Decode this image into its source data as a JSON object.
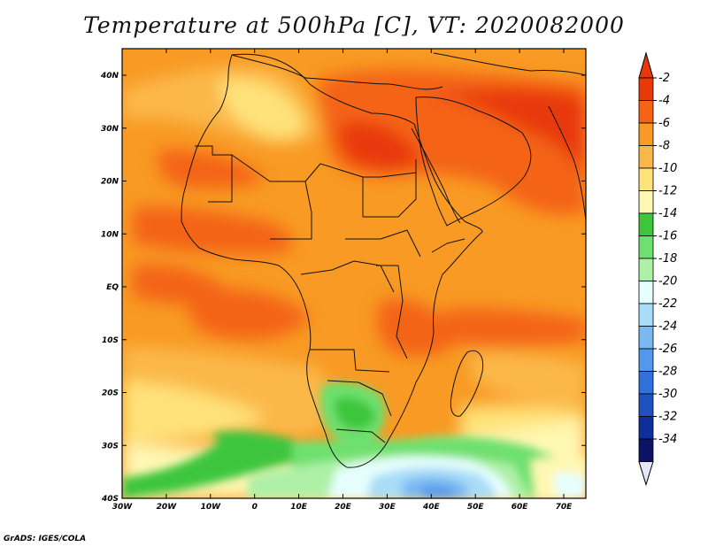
{
  "title": "Temperature at 500hPa [C], VT: 2020082000",
  "credit": "GrADS: IGES/COLA",
  "map": {
    "lat_labels": [
      "40N",
      "30N",
      "20N",
      "10N",
      "EQ",
      "10S",
      "20S",
      "30S",
      "40S"
    ],
    "lon_labels": [
      "30W",
      "20W",
      "10W",
      "0",
      "10E",
      "20E",
      "30E",
      "40E",
      "50E",
      "60E",
      "70E"
    ]
  },
  "colorbar": {
    "labels": [
      "-2",
      "-4",
      "-6",
      "-8",
      "-10",
      "-12",
      "-14",
      "-16",
      "-18",
      "-20",
      "-22",
      "-24",
      "-26",
      "-28",
      "-30",
      "-32",
      "-34"
    ],
    "colors": [
      "#e8390a",
      "#f46414",
      "#f89a24",
      "#fbb84a",
      "#fee37a",
      "#fff8b4",
      "#3dc63c",
      "#6ee06e",
      "#aef0a6",
      "#e6fefe",
      "#a8dcf8",
      "#7ab8f2",
      "#5298ec",
      "#3270de",
      "#1e52c0",
      "#0e2e9a",
      "#0c1264"
    ],
    "top_arrow_color": "#e8390a",
    "bottom_arrow_color": "#e6e6fa"
  }
}
